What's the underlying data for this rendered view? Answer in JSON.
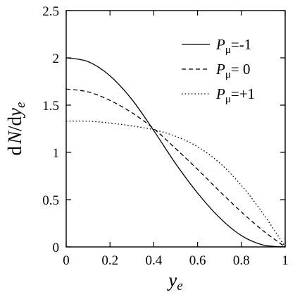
{
  "chart_data": {
    "type": "line",
    "title": "",
    "xlabel": {
      "base": "y",
      "sub": "e"
    },
    "ylabel": {
      "prefix": "d",
      "var": "N",
      "mid": "/d",
      "base": "y",
      "sub": "e"
    },
    "xlim": [
      0,
      1
    ],
    "ylim": [
      0,
      2.5
    ],
    "xticks": [
      "0",
      "0.2",
      "0.4",
      "0.6",
      "0.8",
      "1"
    ],
    "yticks": [
      "0",
      "0.5",
      "1",
      "1.5",
      "2",
      "2.5"
    ],
    "grid": false,
    "legend_position": "top-right",
    "legend_symbol": {
      "base": "P",
      "sub": "μ"
    },
    "series": [
      {
        "name": "=-1",
        "style": "solid",
        "x": [
          0,
          0.1,
          0.2,
          0.3,
          0.4,
          0.5,
          0.6,
          0.7,
          0.8,
          0.9,
          1.0
        ],
        "y": [
          2.0,
          1.96,
          1.81,
          1.56,
          1.23,
          0.88,
          0.57,
          0.31,
          0.12,
          0.02,
          0.0
        ]
      },
      {
        "name": "= 0",
        "style": "dashed",
        "x": [
          0,
          0.1,
          0.2,
          0.3,
          0.4,
          0.5,
          0.6,
          0.7,
          0.8,
          0.9,
          1.0
        ],
        "y": [
          1.67,
          1.64,
          1.55,
          1.42,
          1.25,
          1.04,
          0.82,
          0.59,
          0.37,
          0.17,
          0.0
        ]
      },
      {
        "name": "=+1",
        "style": "dotted",
        "x": [
          0,
          0.1,
          0.2,
          0.3,
          0.4,
          0.5,
          0.6,
          0.7,
          0.8,
          0.9,
          1.0
        ],
        "y": [
          1.33,
          1.33,
          1.31,
          1.28,
          1.24,
          1.17,
          1.06,
          0.89,
          0.65,
          0.35,
          0.0
        ]
      }
    ]
  }
}
